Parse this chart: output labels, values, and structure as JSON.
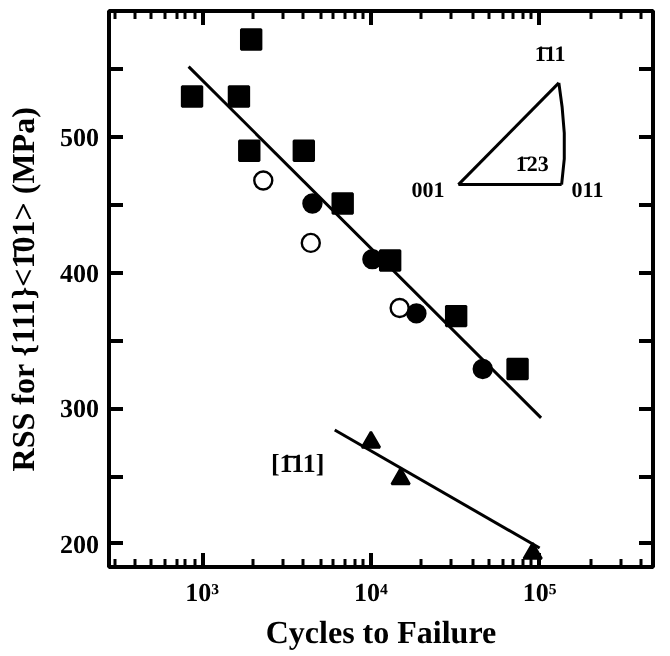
{
  "chart_data": {
    "type": "scatter",
    "xlabel": "Cycles to Failure",
    "ylabel": "RSS for {111}<1̄01> (MPa)",
    "log": "x",
    "xlim": [
      280,
      470000
    ],
    "ylim": [
      183,
      593
    ],
    "xticks": [
      {
        "value": 1000,
        "label": "10³"
      },
      {
        "value": 10000,
        "label": "10⁴"
      },
      {
        "value": 100000,
        "label": "10⁵"
      }
    ],
    "yticks": [
      {
        "value": 200,
        "label": "200"
      },
      {
        "value": 250,
        "label": null
      },
      {
        "value": 300,
        "label": "300"
      },
      {
        "value": 350,
        "label": null
      },
      {
        "value": 400,
        "label": "400"
      },
      {
        "value": 450,
        "label": null
      },
      {
        "value": 500,
        "label": "500"
      },
      {
        "value": 550,
        "label": null
      }
    ],
    "grid": false,
    "legend": false,
    "series": [
      {
        "marker": "square",
        "color": "#000000",
        "x": [
          870,
          1950,
          1650,
          1900,
          4000,
          6800,
          13000,
          32000,
          74000
        ],
        "values": [
          530,
          572,
          530,
          490,
          490,
          451,
          409,
          368,
          329
        ]
      },
      {
        "marker": "circle",
        "color": "#000000",
        "x": [
          4500,
          10200,
          18600,
          46000
        ],
        "values": [
          451,
          410,
          370,
          329
        ]
      },
      {
        "marker": "circle",
        "color": "#ffffff",
        "x": [
          2300,
          4400,
          14800
        ],
        "values": [
          468,
          422,
          374
        ]
      },
      {
        "marker": "triangle",
        "color": "#000000",
        "name": "[1̄11]",
        "x": [
          10000,
          15000,
          91000
        ],
        "values": [
          275,
          248,
          193
        ]
      },
      {
        "type": "line",
        "marker": "none",
        "line_style": "solid",
        "color": "#000000",
        "x": [
          830,
          102000
        ],
        "values": [
          552,
          293
        ]
      },
      {
        "type": "line",
        "marker": "none",
        "line_style": "solid",
        "color": "#000000",
        "x": [
          6100,
          100000
        ],
        "values": [
          284,
          197
        ]
      }
    ],
    "annotations": [
      "1̄11",
      "1̄23",
      "001",
      "011"
    ]
  }
}
